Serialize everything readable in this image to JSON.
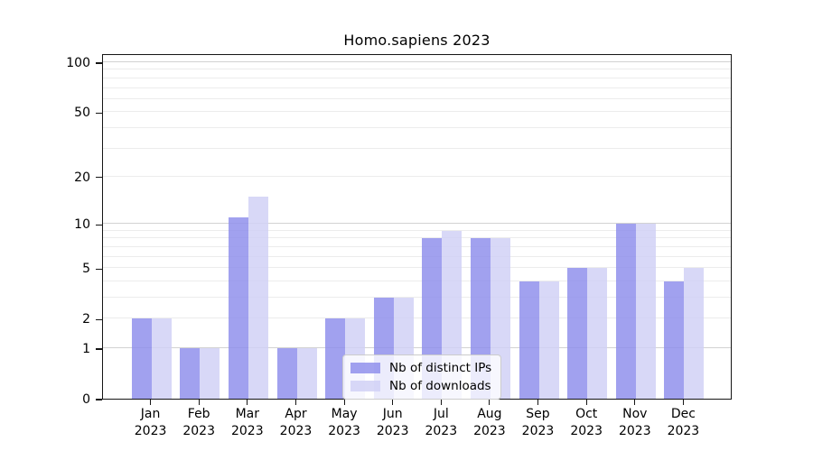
{
  "title": "Homo.sapiens 2023",
  "chart_data": {
    "type": "bar",
    "title": "Homo.sapiens 2023",
    "x_categories": [
      "Jan",
      "Feb",
      "Mar",
      "Apr",
      "May",
      "Jun",
      "Jul",
      "Aug",
      "Sep",
      "Oct",
      "Nov",
      "Dec"
    ],
    "x_year": "2023",
    "series": [
      {
        "name": "Nb of distinct IPs",
        "color": "#9191ec",
        "values": [
          2,
          1,
          11,
          1,
          2,
          3,
          8,
          8,
          4,
          5,
          10,
          4
        ]
      },
      {
        "name": "Nb of downloads",
        "color": "#d1d1f6",
        "values": [
          2,
          1,
          15,
          1,
          2,
          3,
          9,
          8,
          4,
          5,
          10,
          5
        ]
      }
    ],
    "bar_alpha": 0.85,
    "y_axis": {
      "scale": "log10(value+1)",
      "tick_values": [
        0,
        1,
        2,
        5,
        10,
        20,
        50,
        100
      ],
      "major_gridlines": [
        1,
        10,
        100
      ],
      "minor_gridlines": [
        2,
        3,
        4,
        5,
        6,
        7,
        8,
        9,
        20,
        30,
        40,
        50,
        60,
        70,
        80,
        90
      ],
      "range": [
        0,
        113
      ]
    },
    "grid": true,
    "legend_position": "lower center"
  },
  "colors": {
    "bar_distinct_ips": "#9191ec",
    "bar_downloads": "#d1d1f6",
    "major_grid": "#d2d2d2",
    "minor_grid": "#ececec",
    "spine": "#151515",
    "text": "#000000",
    "legend_border": "#cccccc",
    "legend_bg": "#ffffff",
    "legend_bg_alpha": 0.8
  }
}
